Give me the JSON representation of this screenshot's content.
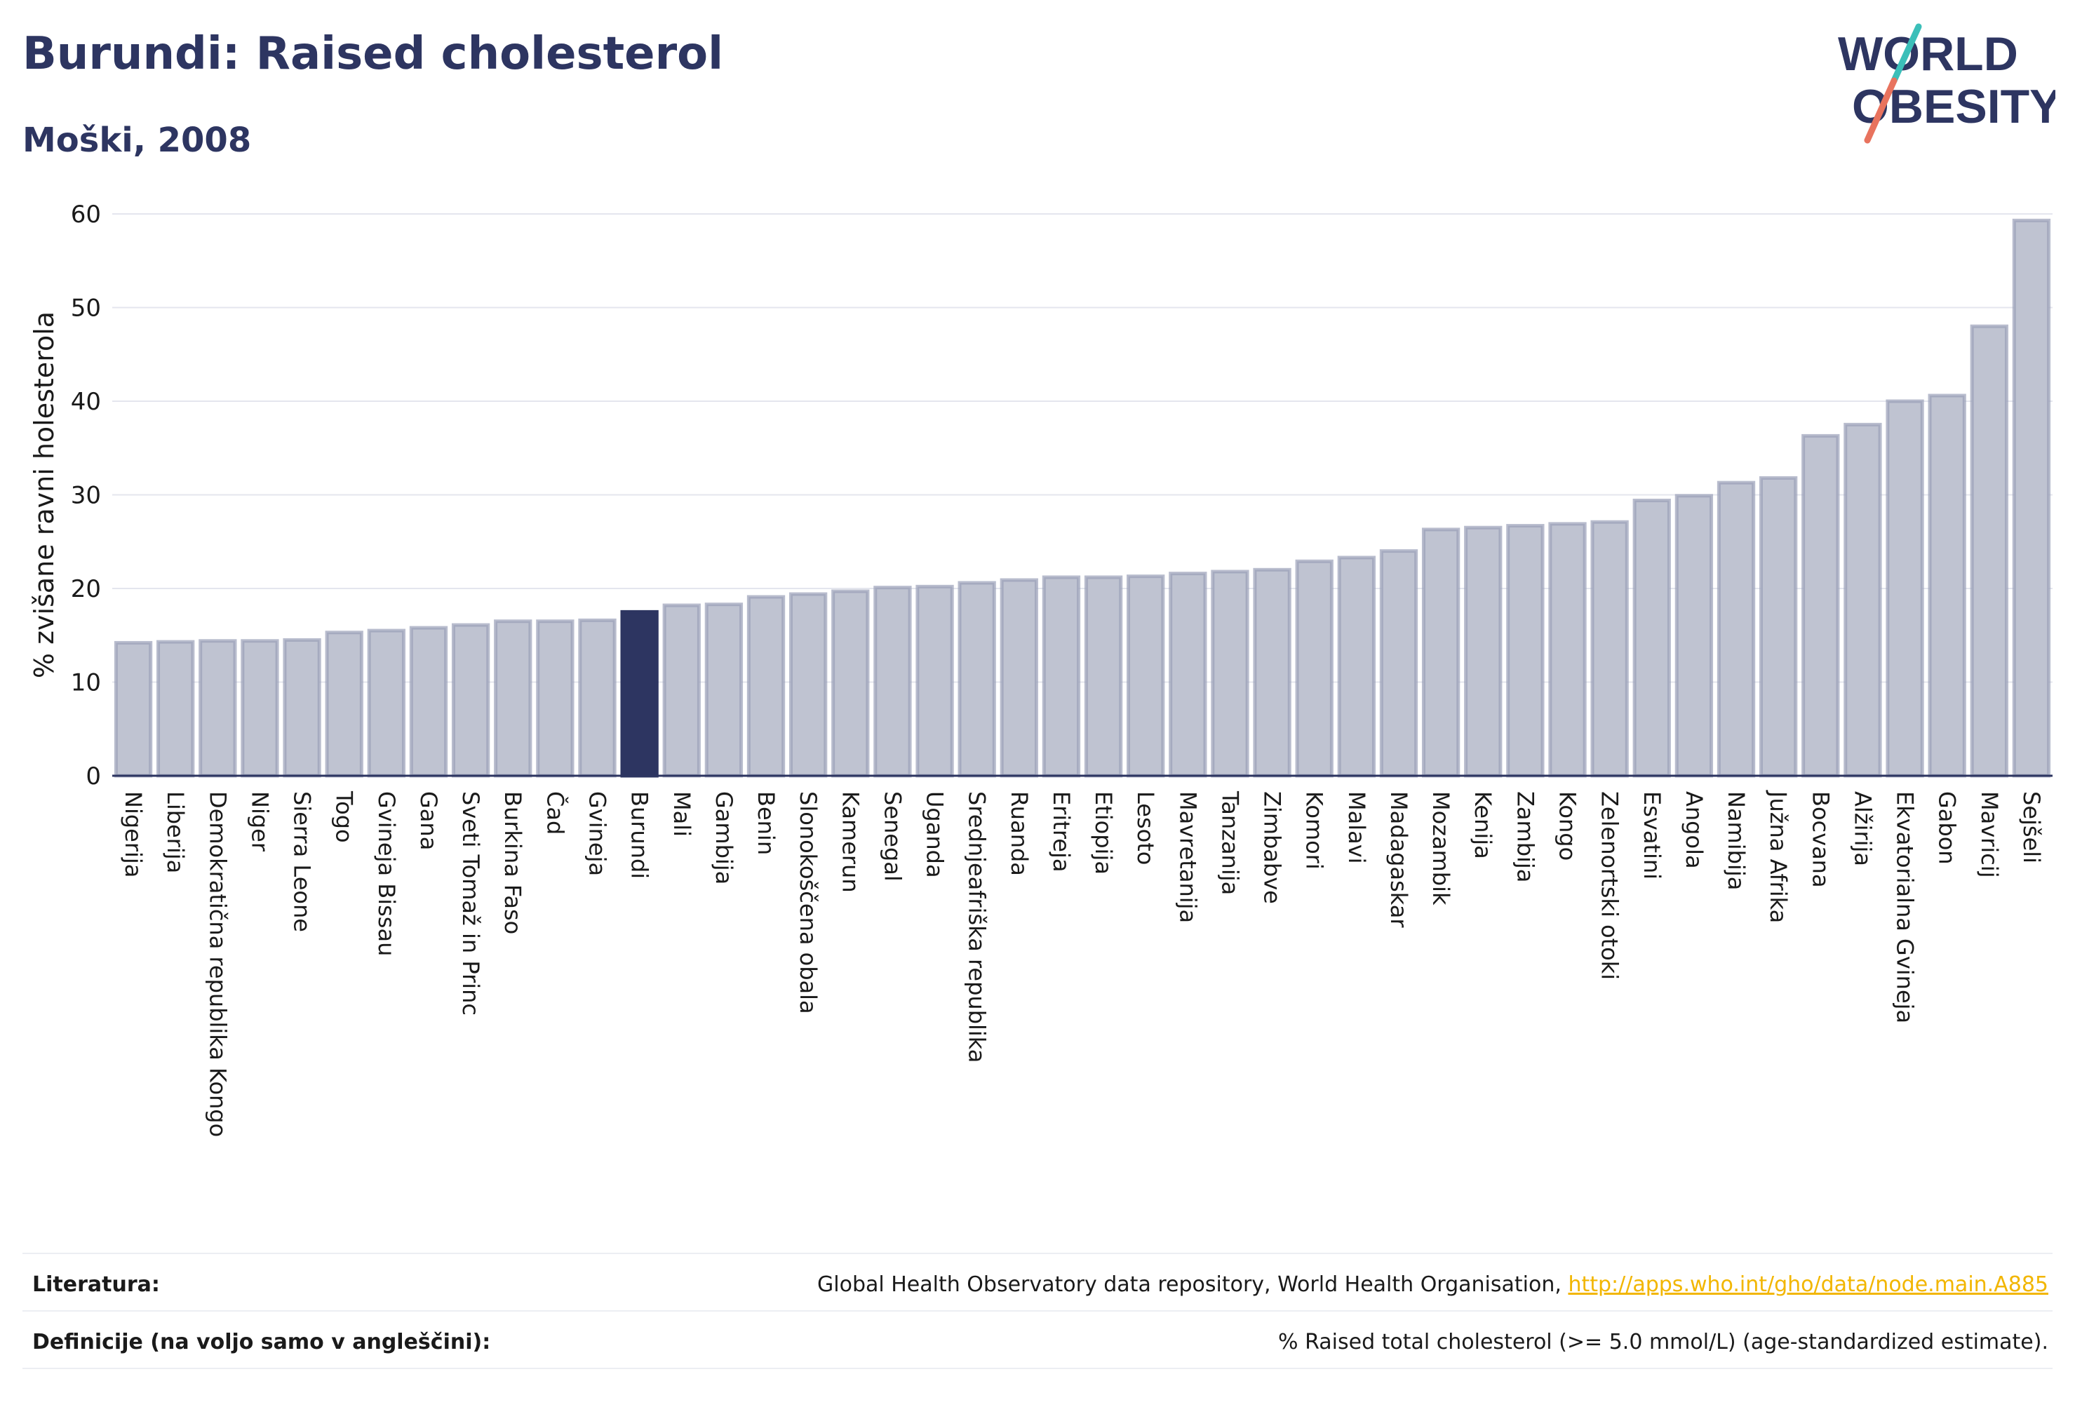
{
  "header": {
    "title": "Burundi: Raised cholesterol",
    "subtitle": "Moški, 2008"
  },
  "logo": {
    "line1": "WORLD",
    "line2": "OBESITY",
    "colors": {
      "text": "#2d3561",
      "slash_top": "#3bbfb9",
      "slash_bottom": "#e8735e"
    }
  },
  "colors": {
    "bar": "#bfc3d1",
    "bar_stroke": "#9aa0b8",
    "highlight": "#2d3561",
    "grid": "#e4e6ee",
    "axis": "#2d3561"
  },
  "chart_data": {
    "type": "bar",
    "ylabel": "% zvišane ravni holesterola",
    "ylim": [
      0,
      60
    ],
    "yticks": [
      0,
      10,
      20,
      30,
      40,
      50,
      60
    ],
    "grid": true,
    "highlight": "Burundi",
    "categories": [
      "Nigerija",
      "Liberija",
      "Demokratična republika Kongo",
      "Niger",
      "Sierra Leone",
      "Togo",
      "Gvineja Bissau",
      "Gana",
      "Sveti Tomaž in Princ",
      "Burkina Faso",
      "Čad",
      "Gvineja",
      "Burundi",
      "Mali",
      "Gambija",
      "Benin",
      "Slonokoščena obala",
      "Kamerun",
      "Senegal",
      "Uganda",
      "Srednjeafriška republika",
      "Ruanda",
      "Eritreja",
      "Etiopija",
      "Lesoto",
      "Mavretanija",
      "Tanzanija",
      "Zimbabve",
      "Komori",
      "Malavi",
      "Madagaskar",
      "Mozambik",
      "Kenija",
      "Zambija",
      "Kongo",
      "Zelenortski otoki",
      "Esvatini",
      "Angola",
      "Namibija",
      "Južna Afrika",
      "Bocvana",
      "Alžirija",
      "Ekvatorialna Gvineja",
      "Gabon",
      "Mavricij",
      "Sejšeli"
    ],
    "values": [
      14.2,
      14.3,
      14.4,
      14.4,
      14.5,
      15.3,
      15.5,
      15.8,
      16.1,
      16.5,
      16.5,
      16.6,
      17.5,
      18.2,
      18.3,
      19.1,
      19.4,
      19.7,
      20.1,
      20.2,
      20.6,
      20.9,
      21.2,
      21.2,
      21.3,
      21.6,
      21.8,
      22.0,
      22.9,
      23.3,
      24.0,
      26.3,
      26.5,
      26.7,
      26.9,
      27.1,
      29.4,
      29.9,
      31.3,
      31.8,
      36.3,
      37.5,
      40.0,
      40.6,
      48.0,
      59.3
    ]
  },
  "footer": {
    "sources_label": "Literatura:",
    "sources_text": "Global Health Observatory data repository, World Health Organisation, ",
    "sources_link": "http://apps.who.int/gho/data/node.main.A885",
    "definitions_label": "Definicije (na voljo samo v angleščini):",
    "definitions_text": "% Raised total cholesterol (>= 5.0 mmol/L) (age-standardized estimate)."
  }
}
